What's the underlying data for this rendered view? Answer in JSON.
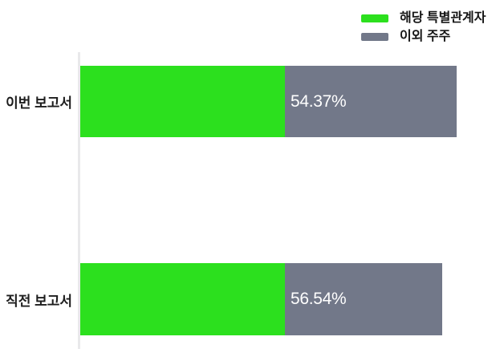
{
  "chart_data": {
    "type": "bar",
    "orientation": "horizontal",
    "stacked": true,
    "title": "",
    "xlabel": "",
    "ylabel": "",
    "grid": false,
    "legend_position": "top-right",
    "categories": [
      "이번 보고서",
      "직전 보고서"
    ],
    "series": [
      {
        "name": "해당 특별관계자",
        "color": "#2CE01E",
        "values": [
          54.37,
          56.54
        ]
      },
      {
        "name": "이외 주주",
        "color": "#727889",
        "values": [
          45.63,
          43.46
        ]
      }
    ],
    "value_labels": [
      "54.37%",
      "56.54%"
    ],
    "value_label_color": "#ffffff",
    "axis_line_color": "#e9e9eb"
  },
  "legend": {
    "items": [
      {
        "label": "해당 특별관계자",
        "color": "#2CE01E"
      },
      {
        "label": "이외 주주",
        "color": "#727889"
      }
    ]
  }
}
